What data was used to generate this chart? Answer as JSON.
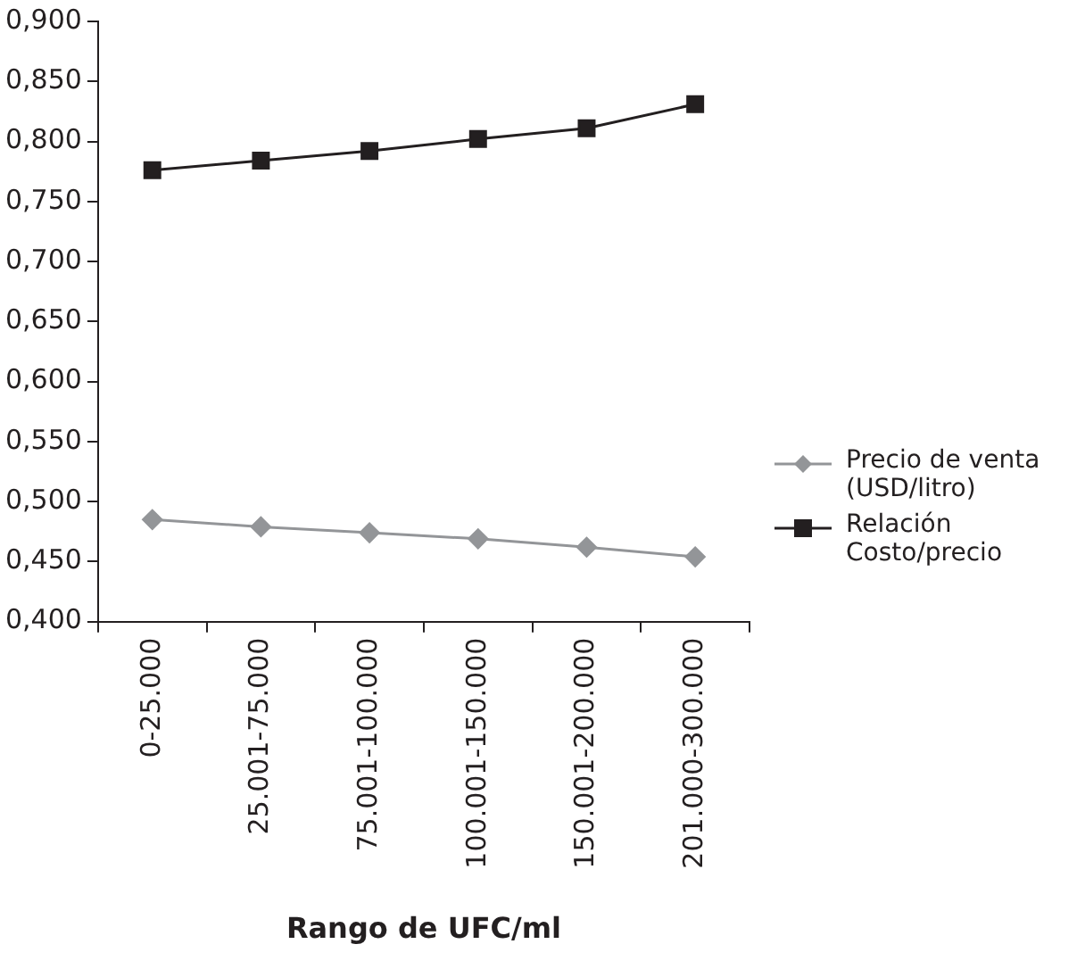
{
  "chart_data": {
    "type": "line",
    "xlabel": "Rango de UFC/ml",
    "categories": [
      "0-25.000",
      "25.001-75.000",
      "75.001-100.000",
      "100.001-150.000",
      "150.001-200.000",
      "201.000-300.000"
    ],
    "series": [
      {
        "name": "Precio de venta (USD/litro)",
        "color": "#939598",
        "marker": "diamond",
        "values": [
          0.485,
          0.479,
          0.474,
          0.469,
          0.462,
          0.454
        ]
      },
      {
        "name": "Relación Costo/precio",
        "color": "#231f20",
        "marker": "square",
        "values": [
          0.776,
          0.784,
          0.792,
          0.802,
          0.811,
          0.831
        ]
      }
    ],
    "ylim": [
      0.4,
      0.9
    ],
    "yticks": [
      {
        "value": 0.4,
        "label": "0,400"
      },
      {
        "value": 0.45,
        "label": "0,450"
      },
      {
        "value": 0.5,
        "label": "0,500"
      },
      {
        "value": 0.55,
        "label": "0,550"
      },
      {
        "value": 0.6,
        "label": "0,600"
      },
      {
        "value": 0.65,
        "label": "0,650"
      },
      {
        "value": 0.7,
        "label": "0,700"
      },
      {
        "value": 0.75,
        "label": "0,750"
      },
      {
        "value": 0.8,
        "label": "0,800"
      },
      {
        "value": 0.85,
        "label": "0,850"
      },
      {
        "value": 0.9,
        "label": "0,900"
      }
    ],
    "grid": false,
    "legend": "right"
  }
}
